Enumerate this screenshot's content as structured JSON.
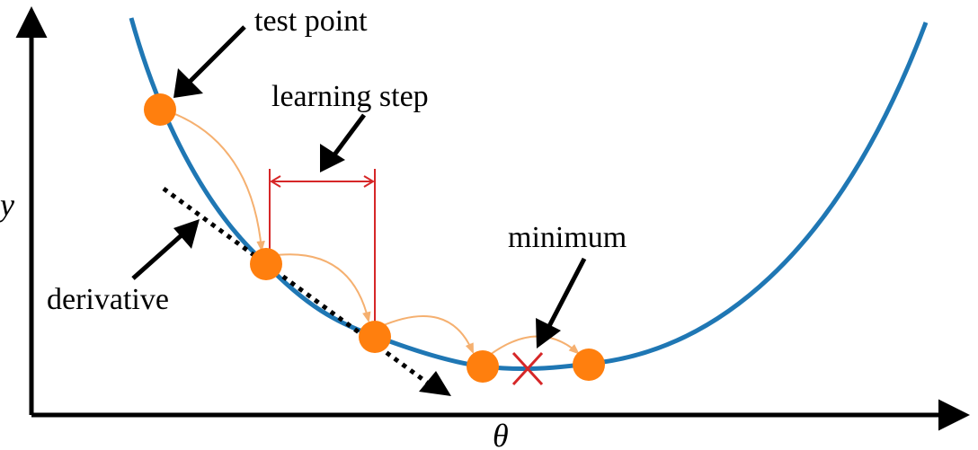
{
  "labels": {
    "test_point": "test point",
    "learning_step": "learning step",
    "minimum": "minimum",
    "derivative": "derivative"
  },
  "axes": {
    "x_label": "θ",
    "y_label": "y"
  },
  "colors": {
    "curve": "#1f77b4",
    "points": "#ff7f0e",
    "step_arrows": "#f5b070",
    "learning_step_bracket": "#d62728",
    "minimum_marker": "#d62728",
    "axes": "#000000",
    "derivative_line": "#000000"
  }
}
